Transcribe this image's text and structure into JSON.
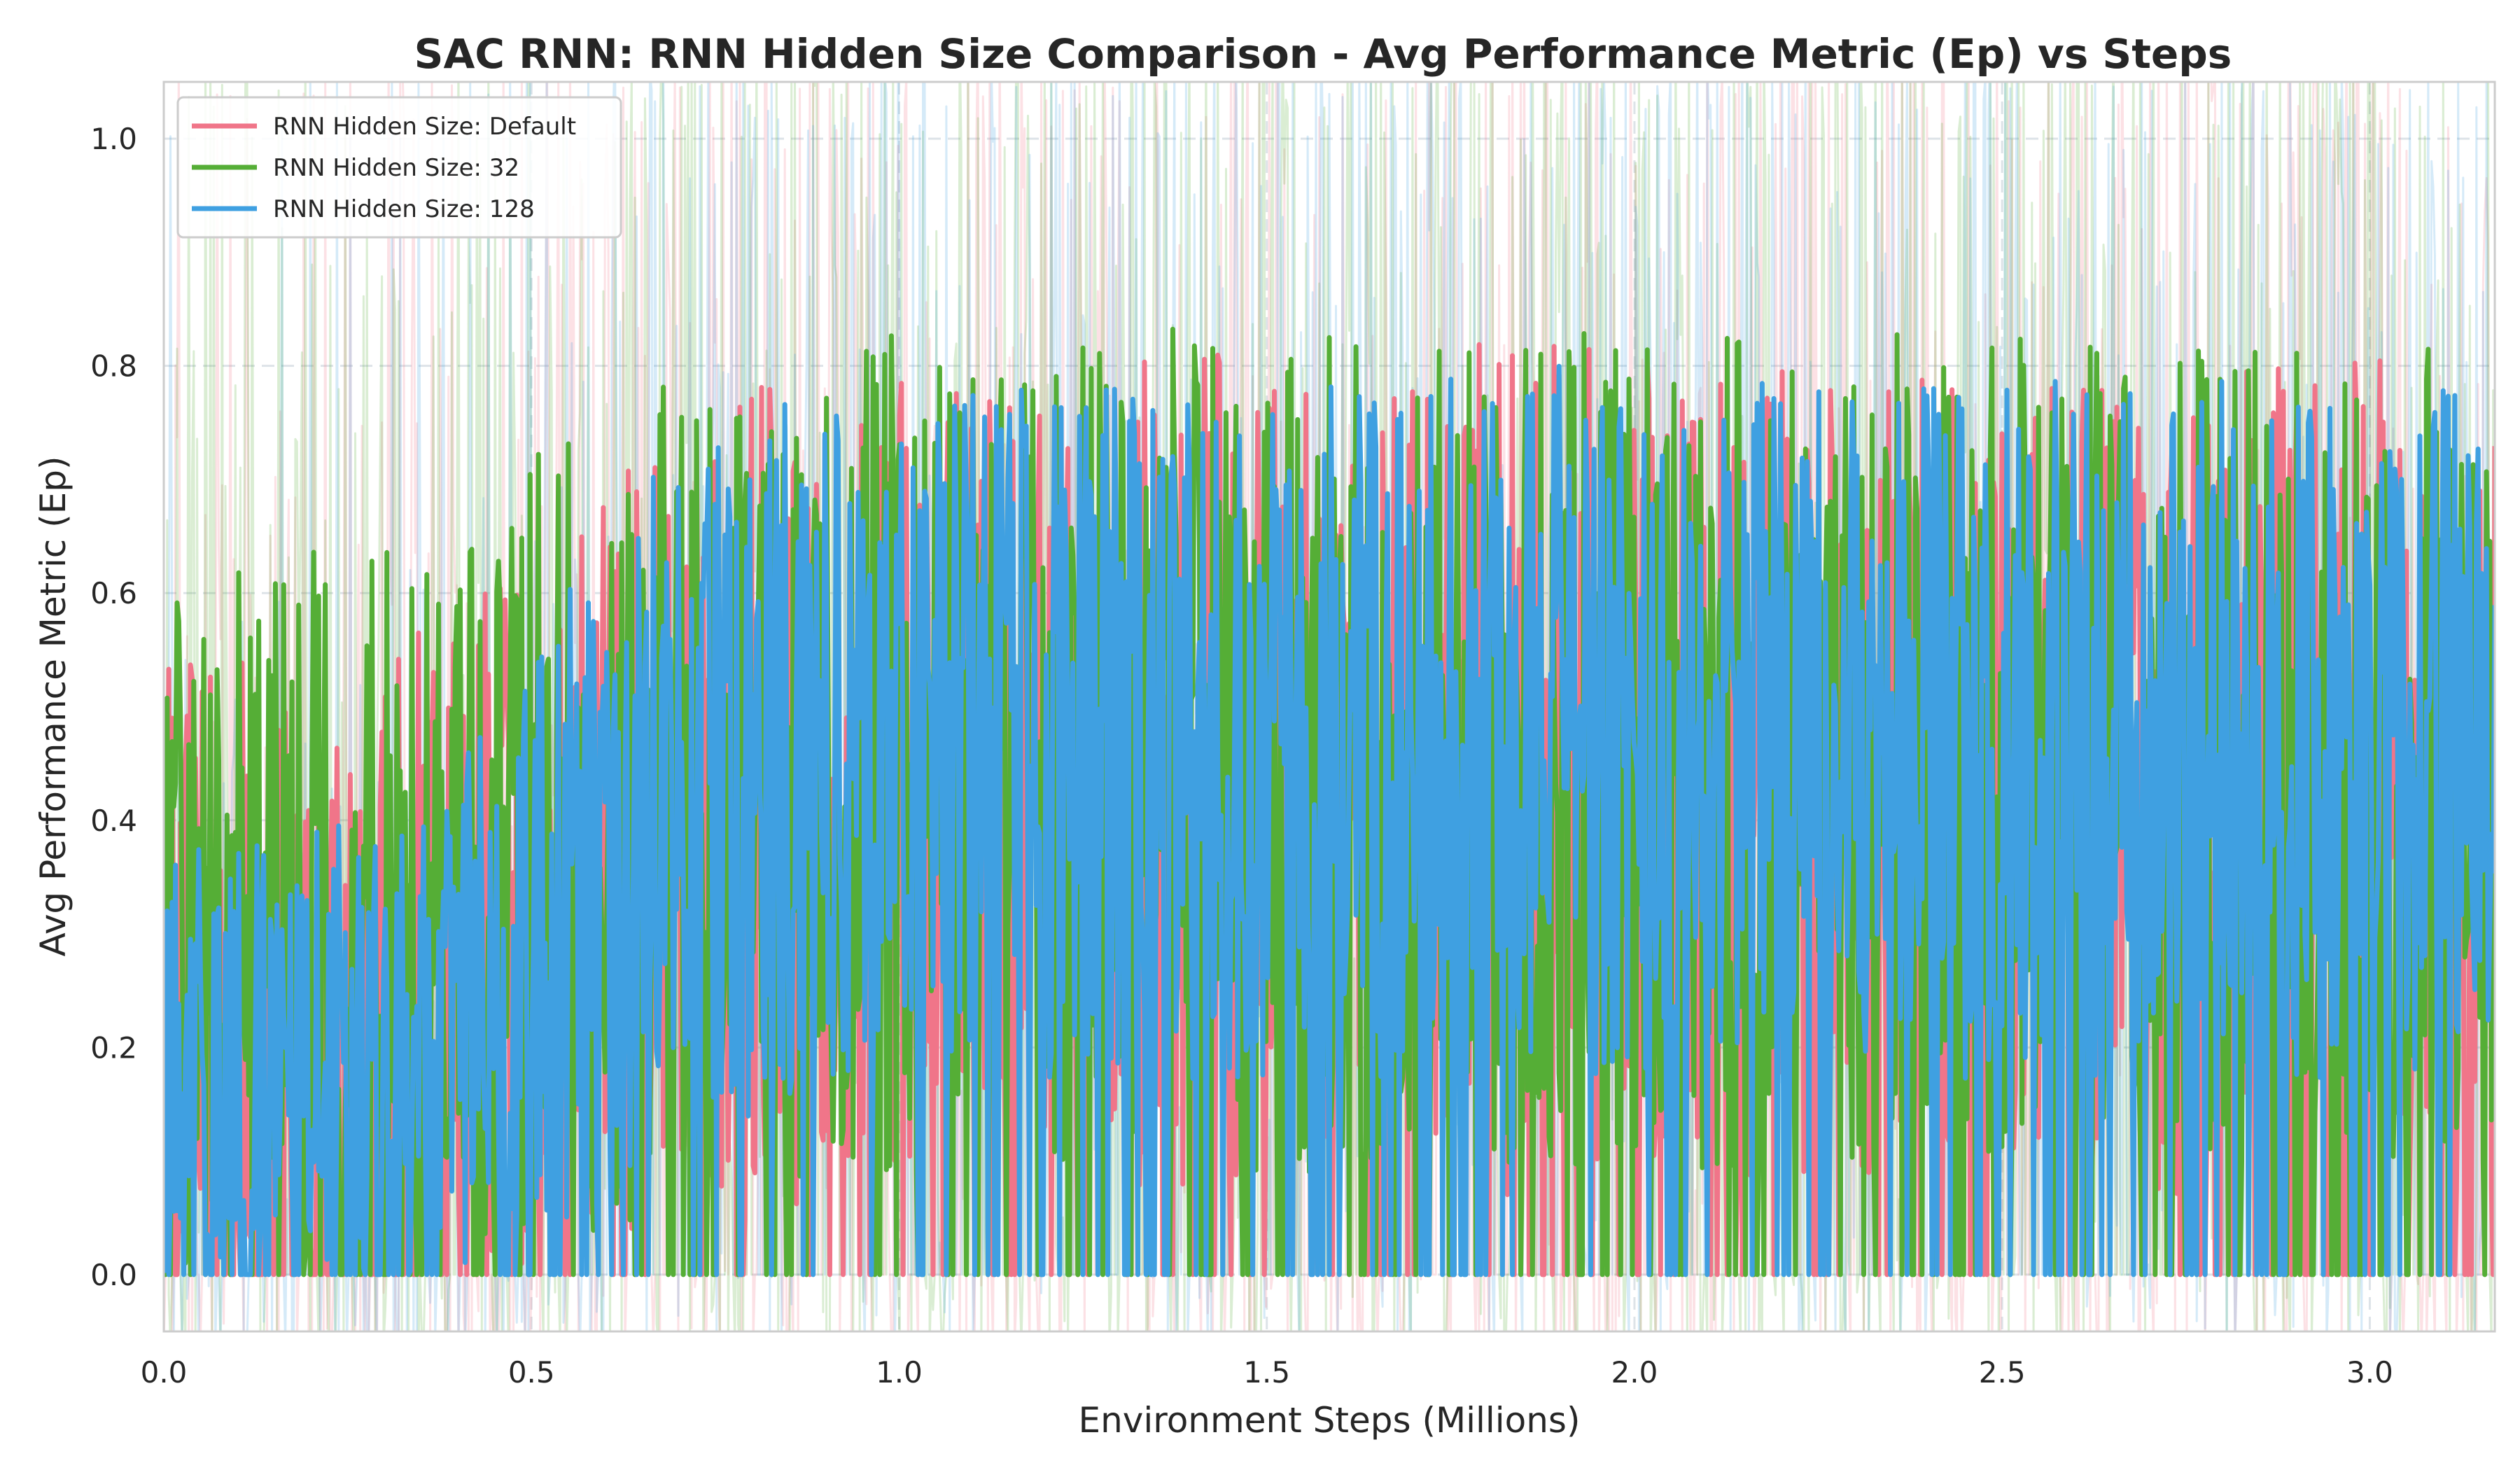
{
  "chart_data": {
    "type": "line",
    "title": "SAC RNN: RNN Hidden Size Comparison - Avg Performance Metric (Ep) vs Steps",
    "xlabel": "Environment Steps (Millions)",
    "ylabel": "Avg Performance Metric (Ep)",
    "xlim": [
      0.0,
      3.17
    ],
    "ylim": [
      -0.05,
      1.05
    ],
    "xticks": [
      0.0,
      0.5,
      1.0,
      1.5,
      2.0,
      2.5,
      3.0
    ],
    "xtick_labels": [
      "0.0",
      "0.5",
      "1.0",
      "1.5",
      "2.0",
      "2.5",
      "3.0"
    ],
    "yticks": [
      0.0,
      0.2,
      0.4,
      0.6,
      0.8,
      1.0
    ],
    "ytick_labels": [
      "0.0",
      "0.2",
      "0.4",
      "0.6",
      "0.8",
      "1.0"
    ],
    "grid": true,
    "legend_position": "top-left",
    "series": [
      {
        "name": "RNN Hidden Size: Default",
        "color": "#f07589",
        "x": [
          0.0,
          0.1,
          0.2,
          0.3,
          0.4,
          0.5,
          0.6,
          0.7,
          0.8,
          0.9,
          1.0,
          1.1,
          1.2,
          1.3,
          1.4,
          1.5,
          1.6,
          1.7,
          1.8,
          1.9,
          2.0,
          2.1,
          2.2,
          2.3,
          2.4,
          2.5,
          2.6,
          2.7,
          2.8,
          2.9,
          3.0,
          3.1,
          3.17
        ],
        "values": [
          0.26,
          0.24,
          0.22,
          0.24,
          0.27,
          0.31,
          0.36,
          0.39,
          0.41,
          0.42,
          0.43,
          0.44,
          0.44,
          0.45,
          0.44,
          0.45,
          0.44,
          0.44,
          0.44,
          0.45,
          0.44,
          0.43,
          0.43,
          0.44,
          0.44,
          0.43,
          0.44,
          0.44,
          0.43,
          0.43,
          0.44,
          0.42,
          0.4
        ],
        "spread": [
          0.3,
          0.3,
          0.3,
          0.31,
          0.32,
          0.33,
          0.34,
          0.36,
          0.37,
          0.37,
          0.37,
          0.37,
          0.37,
          0.37,
          0.37,
          0.37,
          0.37,
          0.37,
          0.38,
          0.37,
          0.37,
          0.37,
          0.37,
          0.37,
          0.37,
          0.37,
          0.37,
          0.37,
          0.37,
          0.37,
          0.37,
          0.37,
          0.37
        ]
      },
      {
        "name": "RNN Hidden Size: 32",
        "color": "#55ae36",
        "x": [
          0.0,
          0.1,
          0.2,
          0.3,
          0.4,
          0.5,
          0.6,
          0.7,
          0.8,
          0.9,
          1.0,
          1.1,
          1.2,
          1.3,
          1.4,
          1.5,
          1.6,
          1.7,
          1.8,
          1.9,
          2.0,
          2.1,
          2.2,
          2.3,
          2.4,
          2.5,
          2.6,
          2.7,
          2.8,
          2.9,
          3.0,
          3.1,
          3.17
        ],
        "values": [
          0.28,
          0.29,
          0.3,
          0.3,
          0.33,
          0.37,
          0.4,
          0.43,
          0.44,
          0.45,
          0.46,
          0.46,
          0.46,
          0.47,
          0.46,
          0.46,
          0.46,
          0.47,
          0.46,
          0.46,
          0.46,
          0.46,
          0.45,
          0.46,
          0.46,
          0.46,
          0.46,
          0.46,
          0.45,
          0.46,
          0.45,
          0.45,
          0.44
        ],
        "spread": [
          0.32,
          0.33,
          0.34,
          0.34,
          0.35,
          0.36,
          0.36,
          0.37,
          0.37,
          0.37,
          0.37,
          0.37,
          0.37,
          0.37,
          0.37,
          0.37,
          0.37,
          0.37,
          0.37,
          0.37,
          0.37,
          0.37,
          0.37,
          0.37,
          0.37,
          0.37,
          0.37,
          0.37,
          0.37,
          0.37,
          0.37,
          0.37,
          0.37
        ]
      },
      {
        "name": "RNN Hidden Size: 128",
        "color": "#3fa0e1",
        "x": [
          0.0,
          0.1,
          0.2,
          0.3,
          0.4,
          0.5,
          0.6,
          0.7,
          0.8,
          0.9,
          1.0,
          1.1,
          1.2,
          1.3,
          1.4,
          1.5,
          1.6,
          1.7,
          1.8,
          1.9,
          2.0,
          2.1,
          2.2,
          2.3,
          2.4,
          2.5,
          2.6,
          2.7,
          2.8,
          2.9,
          3.0,
          3.1,
          3.17
        ],
        "values": [
          0.18,
          0.17,
          0.16,
          0.17,
          0.2,
          0.27,
          0.36,
          0.42,
          0.45,
          0.47,
          0.48,
          0.48,
          0.48,
          0.48,
          0.48,
          0.48,
          0.48,
          0.48,
          0.48,
          0.49,
          0.48,
          0.48,
          0.48,
          0.48,
          0.48,
          0.48,
          0.48,
          0.48,
          0.48,
          0.48,
          0.48,
          0.47,
          0.46
        ],
        "spread": [
          0.2,
          0.22,
          0.23,
          0.24,
          0.26,
          0.28,
          0.3,
          0.31,
          0.31,
          0.31,
          0.31,
          0.31,
          0.31,
          0.31,
          0.31,
          0.31,
          0.31,
          0.31,
          0.31,
          0.31,
          0.31,
          0.31,
          0.31,
          0.31,
          0.31,
          0.31,
          0.31,
          0.31,
          0.31,
          0.31,
          0.31,
          0.31,
          0.31
        ]
      }
    ]
  }
}
